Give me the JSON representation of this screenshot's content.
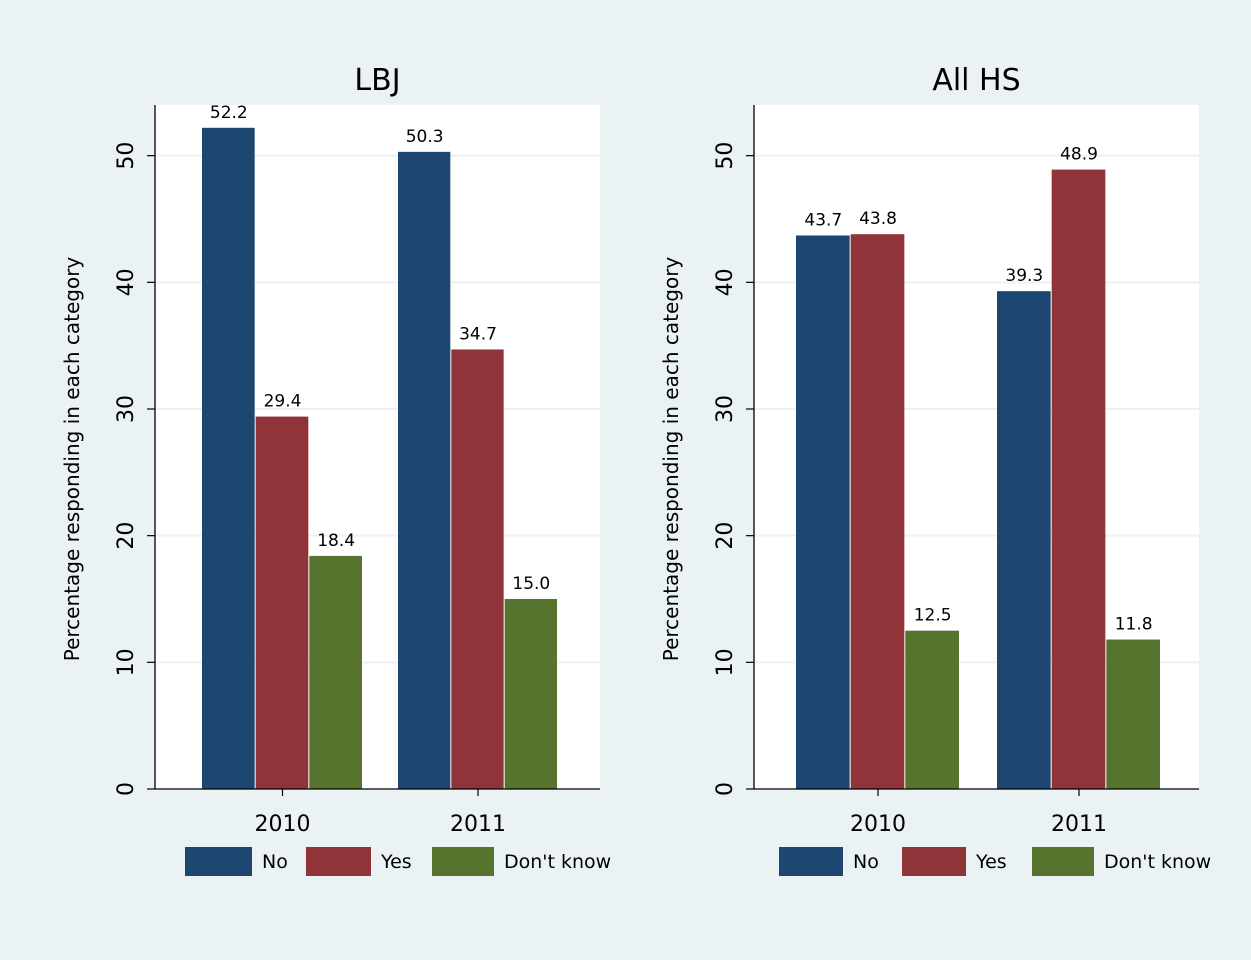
{
  "chart_data": [
    {
      "type": "bar",
      "title": "LBJ",
      "ylabel": "Percentage responding in each category",
      "xlabel": "",
      "categories": [
        "2010",
        "2011"
      ],
      "series": [
        {
          "name": "No",
          "values": [
            52.2,
            50.3
          ],
          "labels": [
            "52.2",
            "50.3"
          ]
        },
        {
          "name": "Yes",
          "values": [
            29.4,
            34.7
          ],
          "labels": [
            "29.4",
            "34.7"
          ]
        },
        {
          "name": "Don't know",
          "values": [
            18.4,
            15.0
          ],
          "labels": [
            "18.4",
            "15.0"
          ]
        }
      ],
      "yticks": [
        0,
        10,
        20,
        30,
        40,
        50
      ],
      "ytick_labels": [
        "0",
        "10",
        "20",
        "30",
        "40",
        "50"
      ],
      "ylim": [
        0,
        54
      ],
      "grid": true,
      "legend": "bottom"
    },
    {
      "type": "bar",
      "title": "All HS",
      "ylabel": "Percentage responding in each category",
      "xlabel": "",
      "categories": [
        "2010",
        "2011"
      ],
      "series": [
        {
          "name": "No",
          "values": [
            43.7,
            39.3
          ],
          "labels": [
            "43.7",
            "39.3"
          ]
        },
        {
          "name": "Yes",
          "values": [
            43.8,
            48.9
          ],
          "labels": [
            "43.8",
            "48.9"
          ]
        },
        {
          "name": "Don't know",
          "values": [
            12.5,
            11.8
          ],
          "labels": [
            "12.5",
            "11.8"
          ]
        }
      ],
      "yticks": [
        0,
        10,
        20,
        30,
        40,
        50
      ],
      "ytick_labels": [
        "0",
        "10",
        "20",
        "30",
        "40",
        "50"
      ],
      "ylim": [
        0,
        54
      ],
      "grid": true,
      "legend": "bottom"
    }
  ],
  "colors": {
    "background": "#eaf2f3",
    "plot_area": "#ffffff",
    "grid": "#eaf2f3",
    "series": [
      "#1d4670",
      "#903439",
      "#56742d"
    ]
  }
}
